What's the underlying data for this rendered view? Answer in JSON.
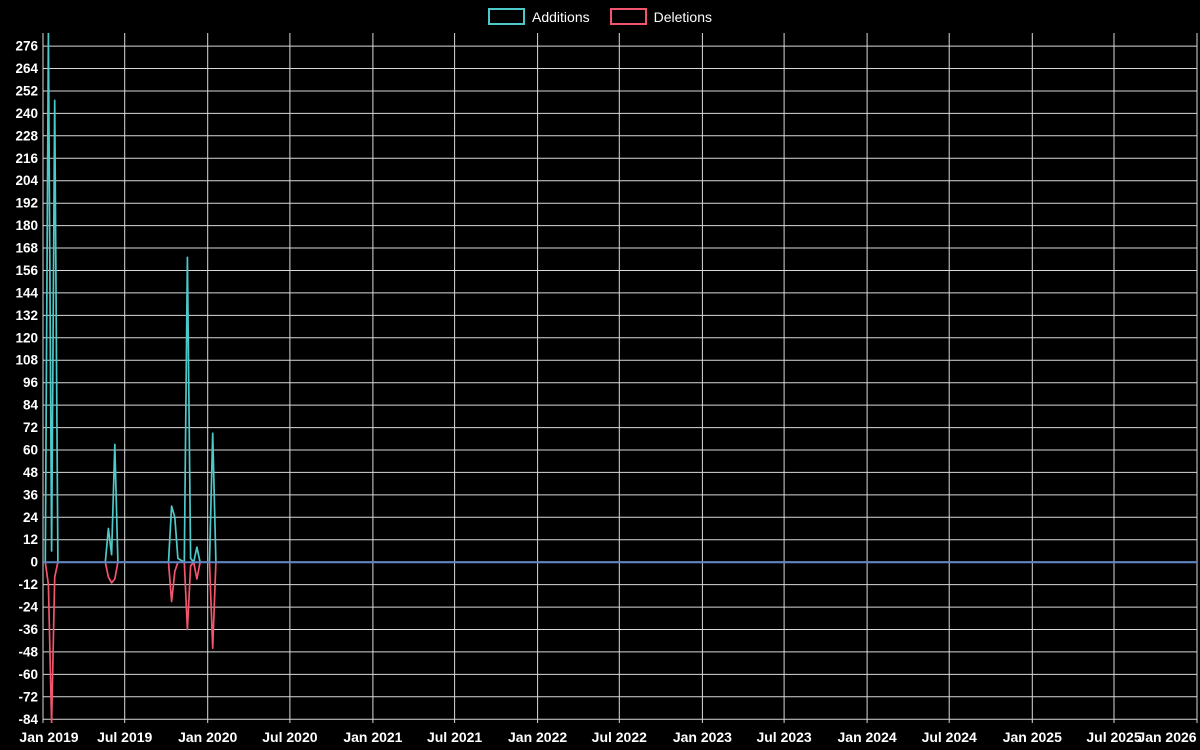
{
  "legend": {
    "position": "top",
    "items": [
      {
        "label": "Additions",
        "color": "#4ec9c9"
      },
      {
        "label": "Deletions",
        "color": "#f2566e"
      }
    ]
  },
  "chart_data": {
    "type": "line",
    "legend_position": "top",
    "background": "#000000",
    "grid": true,
    "grid_color": "#d9d9d9",
    "zero_line_color": "#5e86c6",
    "text_color": "#ffffff",
    "xlim": [
      "2019-01-01",
      "2026-01-01"
    ],
    "ylim": [
      -86,
      283
    ],
    "y_ticks": [
      -84,
      -72,
      -60,
      -48,
      -36,
      -24,
      -12,
      0,
      12,
      24,
      36,
      48,
      60,
      72,
      84,
      96,
      108,
      120,
      132,
      144,
      156,
      168,
      180,
      192,
      204,
      216,
      228,
      240,
      252,
      264,
      276
    ],
    "x_ticks": [
      {
        "date": "2019-01-01",
        "label": "Jan 2019"
      },
      {
        "date": "2019-07-01",
        "label": "Jul 2019"
      },
      {
        "date": "2020-01-01",
        "label": "Jan 2020"
      },
      {
        "date": "2020-07-01",
        "label": "Jul 2020"
      },
      {
        "date": "2021-01-01",
        "label": "Jan 2021"
      },
      {
        "date": "2021-07-01",
        "label": "Jul 2021"
      },
      {
        "date": "2022-01-01",
        "label": "Jan 2022"
      },
      {
        "date": "2022-07-01",
        "label": "Jul 2022"
      },
      {
        "date": "2023-01-01",
        "label": "Jan 2023"
      },
      {
        "date": "2023-07-01",
        "label": "Jul 2023"
      },
      {
        "date": "2024-01-01",
        "label": "Jan 2024"
      },
      {
        "date": "2024-07-01",
        "label": "Jul 2024"
      },
      {
        "date": "2025-01-01",
        "label": "Jan 2025"
      },
      {
        "date": "2025-07-01",
        "label": "Jul 2025"
      },
      {
        "date": "2026-01-01",
        "label": "Jan 2026"
      }
    ],
    "x": [
      "2019-01-06",
      "2019-01-13",
      "2019-01-20",
      "2019-01-27",
      "2019-02-03",
      "2019-05-19",
      "2019-05-26",
      "2019-06-02",
      "2019-06-09",
      "2019-06-16",
      "2019-10-06",
      "2019-10-13",
      "2019-10-20",
      "2019-10-27",
      "2019-11-10",
      "2019-11-17",
      "2019-11-24",
      "2019-12-01",
      "2019-12-08",
      "2019-12-15",
      "2020-01-05",
      "2020-01-12",
      "2020-01-19",
      "2026-01-01"
    ],
    "series": [
      {
        "name": "Additions",
        "color": "#4ec9c9",
        "values": [
          0,
          283,
          6,
          247,
          0,
          0,
          18,
          4,
          63,
          0,
          0,
          30,
          24,
          2,
          0,
          163,
          2,
          0,
          8,
          0,
          0,
          69,
          0,
          0
        ]
      },
      {
        "name": "Deletions",
        "color": "#f2566e",
        "values": [
          0,
          -12,
          -86,
          -8,
          0,
          0,
          -8,
          -11,
          -9,
          0,
          0,
          -21,
          -5,
          0,
          0,
          -36,
          -2,
          0,
          -9,
          0,
          0,
          -46,
          0,
          0
        ]
      }
    ]
  }
}
